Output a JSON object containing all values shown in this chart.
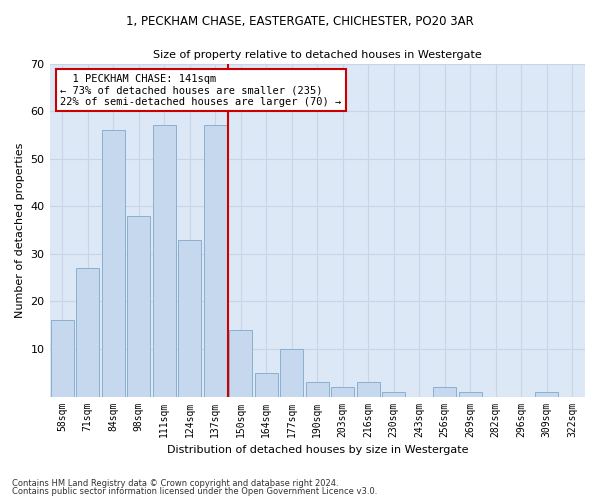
{
  "title1": "1, PECKHAM CHASE, EASTERGATE, CHICHESTER, PO20 3AR",
  "title2": "Size of property relative to detached houses in Westergate",
  "xlabel": "Distribution of detached houses by size in Westergate",
  "ylabel": "Number of detached properties",
  "categories": [
    "58sqm",
    "71sqm",
    "84sqm",
    "98sqm",
    "111sqm",
    "124sqm",
    "137sqm",
    "150sqm",
    "164sqm",
    "177sqm",
    "190sqm",
    "203sqm",
    "216sqm",
    "230sqm",
    "243sqm",
    "256sqm",
    "269sqm",
    "282sqm",
    "296sqm",
    "309sqm",
    "322sqm"
  ],
  "values": [
    16,
    27,
    56,
    38,
    57,
    33,
    57,
    14,
    5,
    10,
    3,
    2,
    3,
    1,
    0,
    2,
    1,
    0,
    0,
    1,
    0
  ],
  "bar_color": "#c5d8ed",
  "bar_edge_color": "#8ab0d0",
  "annotation_text": "  1 PECKHAM CHASE: 141sqm\n← 73% of detached houses are smaller (235)\n22% of semi-detached houses are larger (70) →",
  "annotation_box_color": "#ffffff",
  "annotation_box_edge_color": "#cc0000",
  "vline_color": "#cc0000",
  "grid_color": "#c8d4e8",
  "background_color": "#dce8f5",
  "ylim": [
    0,
    70
  ],
  "yticks": [
    0,
    10,
    20,
    30,
    40,
    50,
    60,
    70
  ],
  "vline_x": 7.0,
  "footnote1": "Contains HM Land Registry data © Crown copyright and database right 2024.",
  "footnote2": "Contains public sector information licensed under the Open Government Licence v3.0."
}
